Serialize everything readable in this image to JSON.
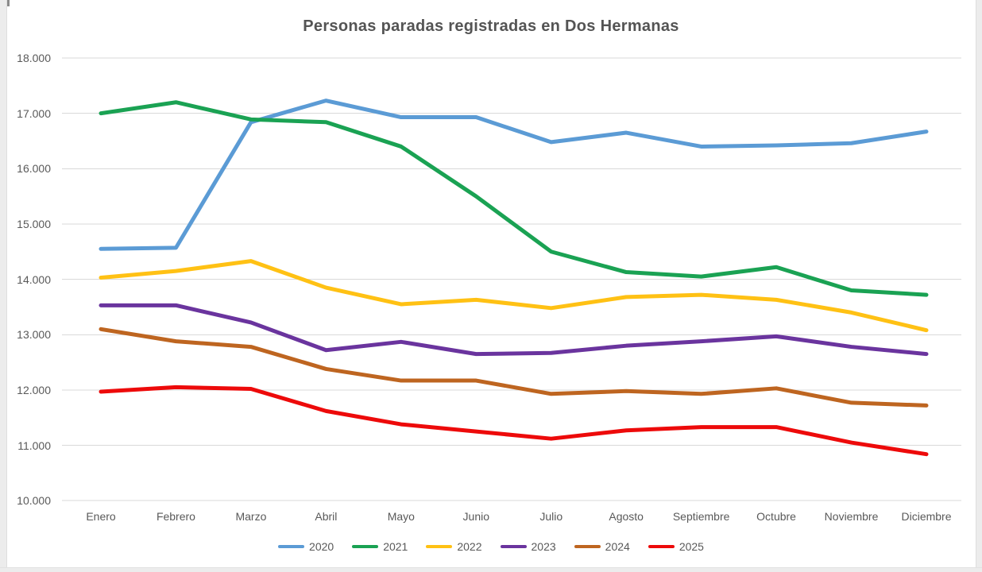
{
  "chart_data": {
    "type": "line",
    "title": "Personas paradas registradas en Dos Hermanas",
    "categories": [
      "Enero",
      "Febrero",
      "Marzo",
      "Abril",
      "Mayo",
      "Junio",
      "Julio",
      "Agosto",
      "Septiembre",
      "Octubre",
      "Noviembre",
      "Diciembre"
    ],
    "y_ticks": [
      "10.000",
      "11.000",
      "12.000",
      "13.000",
      "14.000",
      "15.000",
      "16.000",
      "17.000",
      "18.000"
    ],
    "ylim": [
      10000,
      18000
    ],
    "y_step": 1000,
    "grid": "horizontal",
    "legend_position": "bottom",
    "series": [
      {
        "name": "2020",
        "color": "#5B9BD5",
        "values": [
          14550,
          14570,
          16840,
          17230,
          16930,
          16930,
          16480,
          16650,
          16400,
          16420,
          16460,
          16670
        ]
      },
      {
        "name": "2021",
        "color": "#1AA253",
        "values": [
          17000,
          17200,
          16890,
          16840,
          16400,
          15500,
          14500,
          14130,
          14050,
          14220,
          13800,
          13720
        ]
      },
      {
        "name": "2022",
        "color": "#FFC114",
        "values": [
          14030,
          14150,
          14330,
          13850,
          13550,
          13630,
          13480,
          13680,
          13720,
          13630,
          13400,
          13080
        ]
      },
      {
        "name": "2023",
        "color": "#6A349E",
        "values": [
          13530,
          13530,
          13220,
          12720,
          12870,
          12650,
          12670,
          12800,
          12880,
          12970,
          12780,
          12650
        ]
      },
      {
        "name": "2024",
        "color": "#BE6520",
        "values": [
          13100,
          12880,
          12780,
          12380,
          12170,
          12170,
          11930,
          11980,
          11930,
          12030,
          11770,
          11720
        ]
      },
      {
        "name": "2025",
        "color": "#ED0A0A",
        "values": [
          11970,
          12050,
          12020,
          11620,
          11380,
          11250,
          11120,
          11270,
          11330,
          11330,
          11050,
          10840
        ]
      }
    ]
  },
  "styles": {
    "title_color": "#545454",
    "axis_label_color": "#595959",
    "gridline_color": "#D9D9D9",
    "background": "#FFFFFF",
    "window_edge_color": "#ECECEC"
  }
}
